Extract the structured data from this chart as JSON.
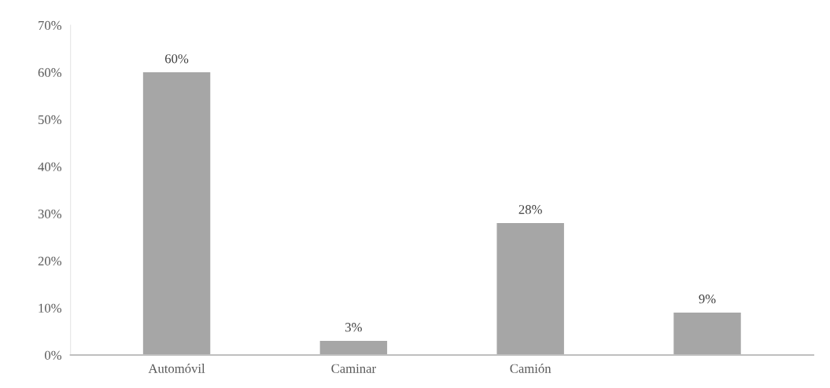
{
  "chart_data": {
    "type": "bar",
    "categories": [
      "Automóvil",
      "Caminar",
      "Camión",
      null
    ],
    "values": [
      60,
      3,
      28,
      9
    ],
    "value_labels": [
      "60%",
      "3%",
      "28%",
      "9%"
    ],
    "color": "#a6a6a6",
    "ylim": [
      0,
      70
    ],
    "yticks": [
      {
        "value": 0,
        "label": "0%"
      },
      {
        "value": 10,
        "label": "10%"
      },
      {
        "value": 20,
        "label": "20%"
      },
      {
        "value": 30,
        "label": "30%"
      },
      {
        "value": 40,
        "label": "40%"
      },
      {
        "value": 50,
        "label": "50%"
      },
      {
        "value": 60,
        "label": "60%"
      },
      {
        "value": 70,
        "label": "70%"
      }
    ],
    "grid": false,
    "legend": false
  }
}
